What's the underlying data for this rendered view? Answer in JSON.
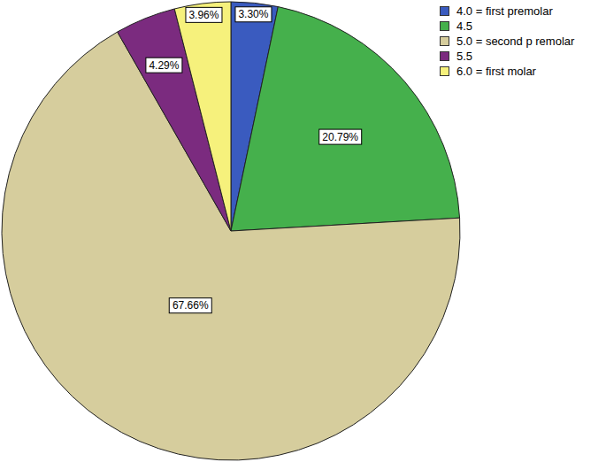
{
  "chart_data": {
    "type": "pie",
    "categories": [
      "4.0 = first premolar",
      "4.5",
      "5.0 = second p remolar",
      "5.5",
      "6.0 = first molar"
    ],
    "values": [
      3.3,
      20.79,
      67.66,
      4.29,
      3.96
    ],
    "value_labels": [
      "3.30%",
      "20.79%",
      "67.66%",
      "4.29%",
      "3.96%"
    ],
    "colors": [
      "#3a5bbf",
      "#45b04c",
      "#d6cd9d",
      "#7b2b7f",
      "#f6f17c"
    ],
    "data_labels": true,
    "legend": "top-right"
  }
}
